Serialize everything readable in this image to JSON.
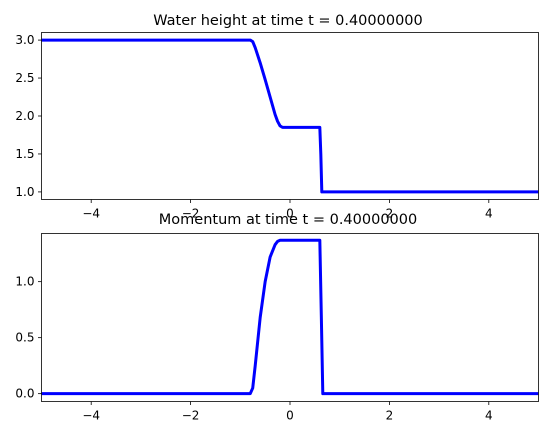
{
  "figure": {
    "line_color": "#0000ff",
    "background": "#ffffff"
  },
  "chart_data": [
    {
      "type": "line",
      "title": "Water height at time t =     0.40000000",
      "xlabel": "",
      "ylabel": "",
      "xlim": [
        -5,
        5
      ],
      "ylim": [
        0.9,
        3.1
      ],
      "xticks": [
        -4,
        -2,
        0,
        2,
        4
      ],
      "xtick_labels": [
        "−4",
        "−2",
        "0",
        "2",
        "4"
      ],
      "yticks": [
        1.0,
        1.5,
        2.0,
        2.5,
        3.0
      ],
      "ytick_labels": [
        "1.0",
        "1.5",
        "2.0",
        "2.5",
        "3.0"
      ],
      "grid": false,
      "series": [
        {
          "x": [
            -5,
            -0.8,
            -0.75,
            -0.7,
            -0.6,
            -0.5,
            -0.4,
            -0.3,
            -0.25,
            -0.2,
            -0.15,
            -0.1,
            0.0,
            0.2,
            0.4,
            0.55,
            0.6,
            0.62,
            0.64,
            0.7,
            1.0,
            5
          ],
          "y": [
            3.0,
            3.0,
            2.98,
            2.9,
            2.7,
            2.48,
            2.25,
            2.02,
            1.93,
            1.87,
            1.85,
            1.85,
            1.85,
            1.85,
            1.85,
            1.85,
            1.85,
            1.5,
            1.0,
            1.0,
            1.0,
            1.0
          ]
        }
      ]
    },
    {
      "type": "line",
      "title": "Momentum at time t =     0.40000000",
      "xlabel": "",
      "ylabel": "",
      "xlim": [
        -5,
        5
      ],
      "ylim": [
        -0.07,
        1.43
      ],
      "xticks": [
        -4,
        -2,
        0,
        2,
        4
      ],
      "xtick_labels": [
        "−4",
        "−2",
        "0",
        "2",
        "4"
      ],
      "yticks": [
        0.0,
        0.5,
        1.0
      ],
      "ytick_labels": [
        "0.0",
        "0.5",
        "1.0"
      ],
      "grid": false,
      "series": [
        {
          "x": [
            -5,
            -0.8,
            -0.75,
            -0.7,
            -0.6,
            -0.5,
            -0.4,
            -0.3,
            -0.25,
            -0.2,
            -0.15,
            0.0,
            0.3,
            0.5,
            0.6,
            0.63,
            0.66,
            0.7,
            1.0,
            5
          ],
          "y": [
            0.0,
            0.0,
            0.05,
            0.25,
            0.68,
            1.0,
            1.22,
            1.33,
            1.36,
            1.37,
            1.37,
            1.37,
            1.37,
            1.37,
            1.37,
            0.7,
            0.0,
            0.0,
            0.0,
            0.0
          ]
        }
      ]
    }
  ]
}
